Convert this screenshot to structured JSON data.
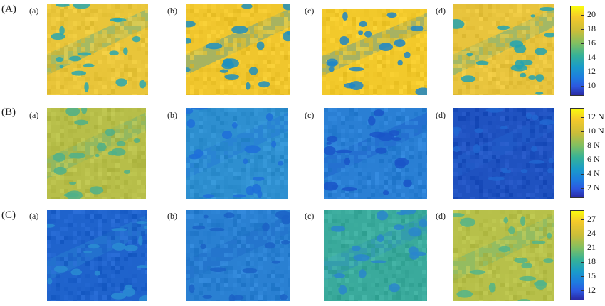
{
  "rows": [
    {
      "label": "(A)",
      "colormap": "parula",
      "panels": [
        {
          "label": "(a)",
          "base": "#e9c53a",
          "blobs": "#2aa7b0"
        },
        {
          "label": "(b)",
          "base": "#f0c62d",
          "blobs": "#1f8fc0"
        },
        {
          "label": "(c)",
          "base": "#f2c92b",
          "blobs": "#1d86c8"
        },
        {
          "label": "(d)",
          "base": "#e8c43d",
          "blobs": "#23a3b2"
        }
      ],
      "colorbar": {
        "ticks": [
          "20",
          "18",
          "16",
          "14",
          "12",
          "10"
        ]
      }
    },
    {
      "label": "(B)",
      "colormap": "parula",
      "panels": [
        {
          "label": "(a)",
          "base": "#b7be49",
          "blobs": "#4fb08a"
        },
        {
          "label": "(b)",
          "base": "#2e8fd0",
          "blobs": "#1f6fd9"
        },
        {
          "label": "(c)",
          "base": "#2a7fd4",
          "blobs": "#1a55c8"
        },
        {
          "label": "(d)",
          "base": "#1f52c0",
          "blobs": "#2166d0"
        }
      ],
      "colorbar": {
        "ticks": [
          "12 N",
          "10 N",
          "8 N",
          "6 N",
          "4 N",
          "2 N"
        ]
      }
    },
    {
      "label": "(C)",
      "colormap": "parula",
      "panels": [
        {
          "label": "(a)",
          "base": "#1f63cc",
          "blobs": "#2a8cd2"
        },
        {
          "label": "(b)",
          "base": "#2a80d2",
          "blobs": "#1b62c6"
        },
        {
          "label": "(c)",
          "base": "#3aaa9c",
          "blobs": "#2a86cc"
        },
        {
          "label": "(d)",
          "base": "#b7c04a",
          "blobs": "#52b489"
        }
      ],
      "colorbar": {
        "ticks": [
          "27",
          "24",
          "21",
          "18",
          "15",
          "12"
        ]
      }
    }
  ]
}
